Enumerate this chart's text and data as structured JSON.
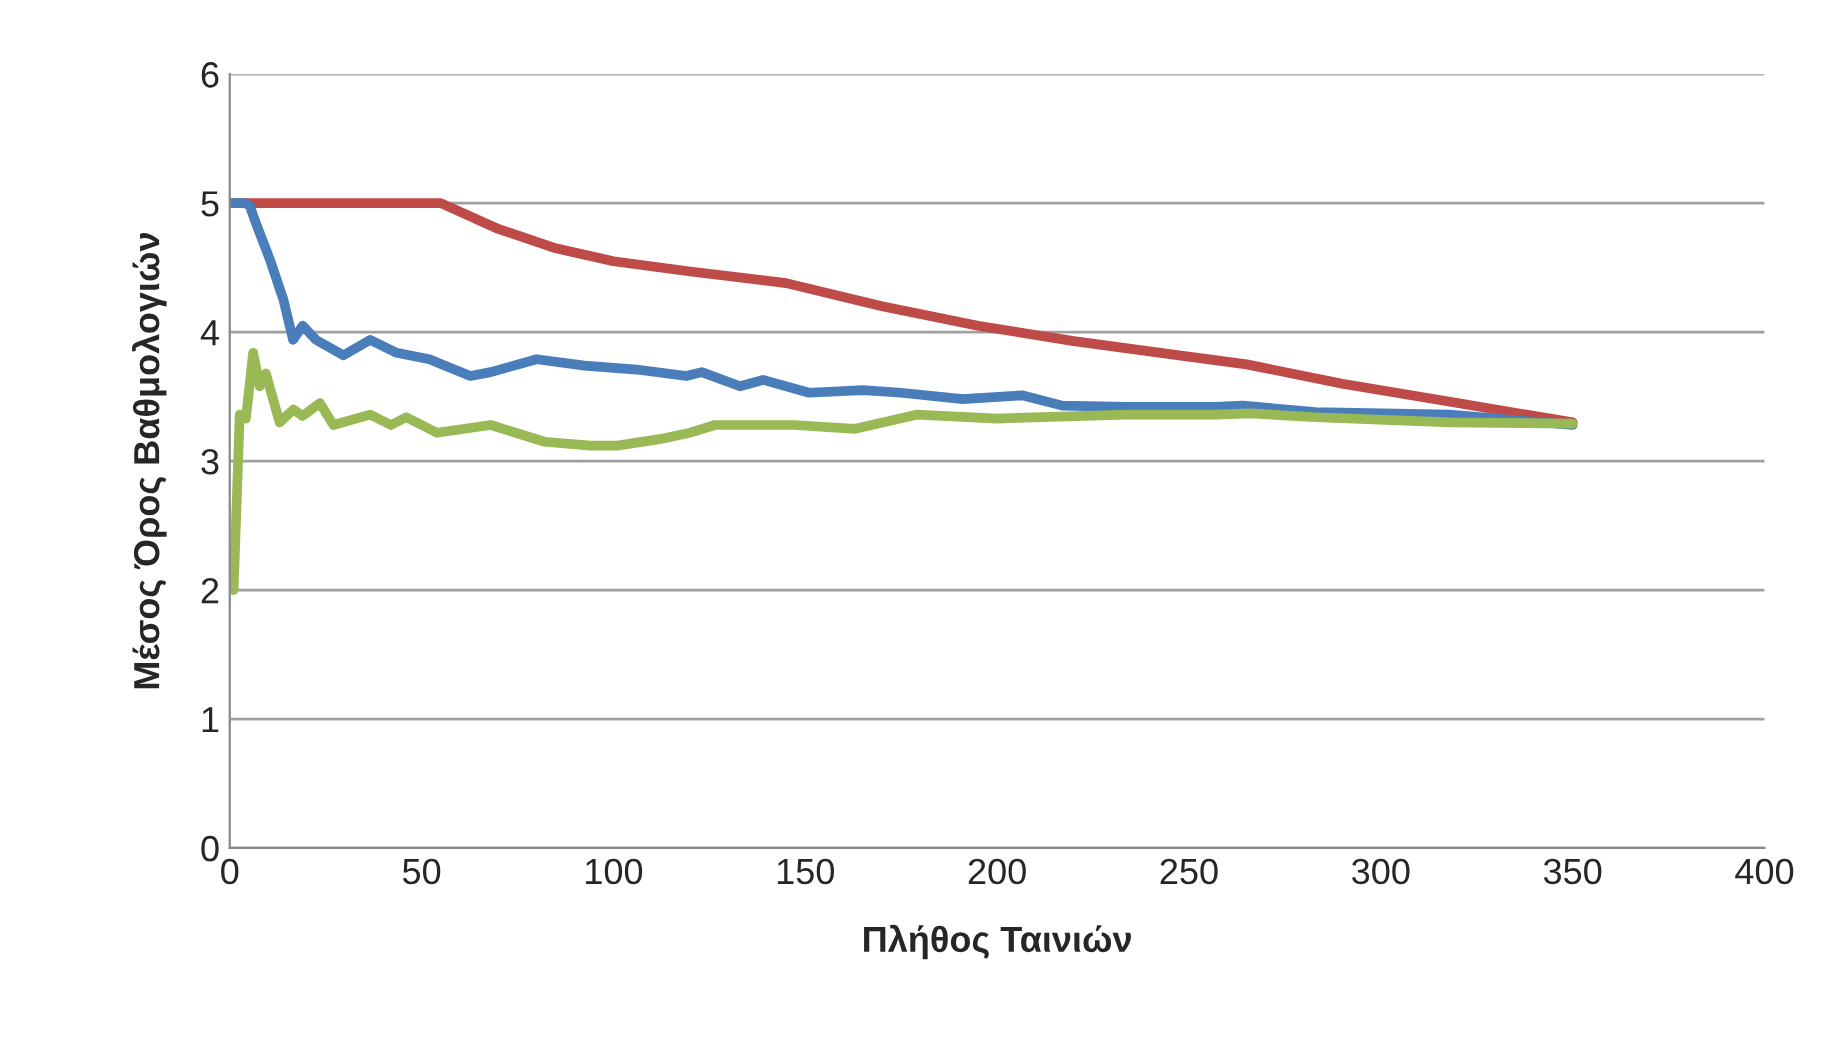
{
  "chart_data": {
    "type": "line",
    "xlabel": "Πλήθος Ταινιών",
    "ylabel": "Μέσος Όρος Βαθμολογιών",
    "xlim": [
      0,
      400
    ],
    "xticks": [
      0,
      50,
      100,
      150,
      200,
      250,
      300,
      350,
      400
    ],
    "ylim": [
      0,
      6
    ],
    "yticks": [
      0,
      1,
      2,
      3,
      4,
      5,
      6
    ],
    "grid": "y",
    "marker": "none",
    "line_style": "solid",
    "series": [
      {
        "color": "#be4b48",
        "x": [
          0,
          55,
          70,
          85,
          100,
          120,
          145,
          170,
          195,
          220,
          245,
          265,
          290,
          320,
          350
        ],
        "values": [
          5,
          5,
          4.8,
          4.65,
          4.55,
          4.47,
          4.38,
          4.2,
          4.05,
          3.93,
          3.83,
          3.75,
          3.6,
          3.45,
          3.3
        ]
      },
      {
        "color": "#4a7ebb",
        "x": [
          0,
          4,
          5.2,
          7,
          10.5,
          14,
          16.5,
          19,
          22.5,
          29.6,
          36.6,
          43.5,
          52,
          62.7,
          68,
          80,
          92.5,
          106,
          119,
          123,
          133,
          139,
          151,
          165,
          175,
          191,
          206.5,
          217,
          234,
          257,
          264,
          283,
          318,
          350
        ],
        "values": [
          5,
          5,
          4.98,
          4.83,
          4.56,
          4.25,
          3.94,
          4.05,
          3.94,
          3.82,
          3.94,
          3.84,
          3.79,
          3.66,
          3.69,
          3.79,
          3.74,
          3.71,
          3.66,
          3.69,
          3.58,
          3.63,
          3.53,
          3.55,
          3.53,
          3.48,
          3.51,
          3.43,
          3.42,
          3.42,
          3.43,
          3.38,
          3.36,
          3.28
        ]
      },
      {
        "color": "#98b954",
        "x": [
          1,
          2.6,
          4.2,
          6.1,
          7.8,
          9.4,
          13,
          16.6,
          19,
          23.5,
          27,
          36.6,
          42,
          46,
          54,
          68,
          82,
          94,
          101,
          112,
          120,
          126.5,
          147,
          163,
          179,
          200,
          234,
          257,
          266,
          283,
          318,
          350
        ],
        "values": [
          2.0,
          3.36,
          3.33,
          3.84,
          3.58,
          3.68,
          3.3,
          3.4,
          3.35,
          3.45,
          3.28,
          3.36,
          3.28,
          3.34,
          3.22,
          3.28,
          3.15,
          3.12,
          3.12,
          3.17,
          3.22,
          3.28,
          3.28,
          3.25,
          3.36,
          3.33,
          3.36,
          3.36,
          3.37,
          3.34,
          3.3,
          3.29
        ]
      }
    ]
  }
}
